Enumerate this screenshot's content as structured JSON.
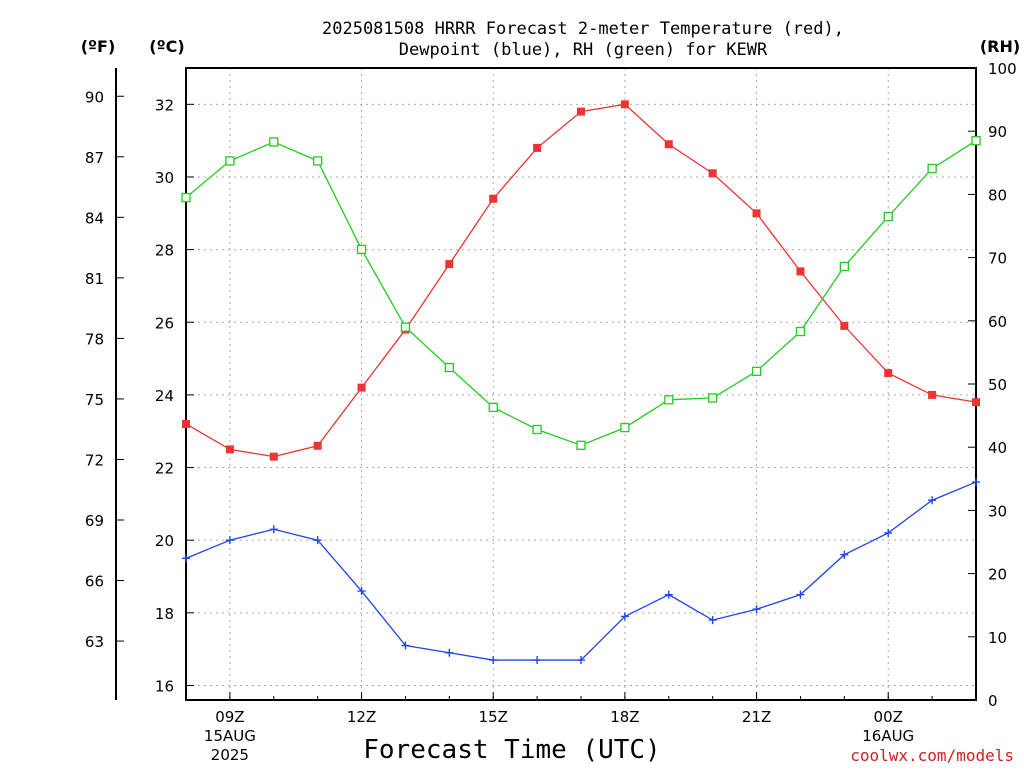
{
  "chart_data": {
    "type": "line",
    "title_line1": "2025081508 HRRR Forecast 2-meter Temperature (red),",
    "title_line2": "Dewpoint (blue), RH (green) for KEWR",
    "xlabel": "Forecast Time (UTC)",
    "credit": "coolwx.com/models",
    "unit_f": "(ºF)",
    "unit_c": "(ºC)",
    "unit_rh": "(RH)",
    "x_hours": [
      8,
      9,
      10,
      11,
      12,
      13,
      14,
      15,
      16,
      17,
      18,
      19,
      20,
      21,
      22,
      23,
      24,
      25,
      26
    ],
    "xlim": [
      8,
      26
    ],
    "x_ticks": [
      {
        "hour": 9,
        "label": "09Z",
        "label2": "15AUG",
        "label3": "2025"
      },
      {
        "hour": 12,
        "label": "12Z",
        "label2": "",
        "label3": ""
      },
      {
        "hour": 15,
        "label": "15Z",
        "label2": "",
        "label3": ""
      },
      {
        "hour": 18,
        "label": "18Z",
        "label2": "",
        "label3": ""
      },
      {
        "hour": 21,
        "label": "21Z",
        "label2": "",
        "label3": ""
      },
      {
        "hour": 24,
        "label": "00Z",
        "label2": "16AUG",
        "label3": ""
      }
    ],
    "temp_c_lim": [
      15.6,
      33.0
    ],
    "rh_lim": [
      0,
      100
    ],
    "celsius_ticks": [
      "16",
      "18",
      "20",
      "22",
      "24",
      "26",
      "28",
      "30",
      "32"
    ],
    "fahrenheit_ticks": [
      "63",
      "66",
      "69",
      "72",
      "75",
      "78",
      "81",
      "84",
      "87",
      "90"
    ],
    "rh_ticks": [
      "0",
      "10",
      "20",
      "30",
      "40",
      "50",
      "60",
      "70",
      "80",
      "90",
      "100"
    ],
    "grid": true,
    "series": [
      {
        "name": "Temperature",
        "color": "#ee3333",
        "marker": "filled-square",
        "values": [
          23.2,
          22.5,
          22.3,
          22.6,
          24.2,
          25.8,
          27.6,
          29.4,
          30.8,
          31.8,
          32.0,
          30.9,
          30.1,
          29.0,
          27.4,
          25.9,
          24.6,
          24.0,
          23.8
        ]
      },
      {
        "name": "Dewpoint",
        "color": "#2244ee",
        "marker": "plus",
        "values": [
          19.5,
          20.0,
          20.3,
          20.0,
          18.6,
          17.1,
          16.9,
          16.7,
          16.7,
          16.7,
          17.9,
          18.5,
          17.8,
          18.1,
          18.5,
          19.6,
          20.2,
          21.1,
          21.6
        ]
      },
      {
        "name": "RH",
        "color": "#22cc22",
        "marker": "open-square",
        "values": [
          79.5,
          85.3,
          88.3,
          85.3,
          71.3,
          59.0,
          52.6,
          46.3,
          42.8,
          40.3,
          43.1,
          47.5,
          47.8,
          52.0,
          58.3,
          68.6,
          76.5,
          84.1,
          88.5
        ]
      }
    ]
  }
}
